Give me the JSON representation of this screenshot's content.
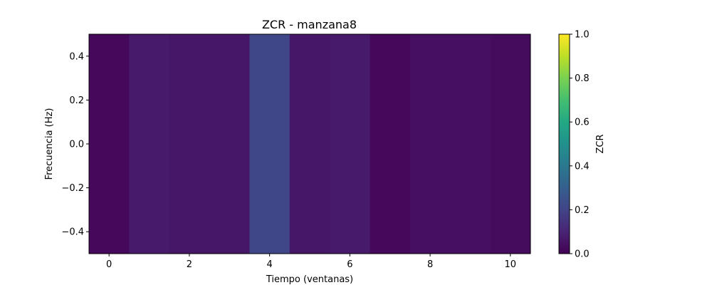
{
  "chart_data": {
    "type": "heatmap",
    "title": "ZCR - manzana8",
    "xlabel": "Tiempo (ventanas)",
    "ylabel": "Frecuencia (Hz)",
    "xlim": [
      -0.5,
      10.5
    ],
    "ylim": [
      -0.5,
      0.5
    ],
    "x_ticks": [
      0,
      2,
      4,
      6,
      8,
      10
    ],
    "x_tick_labels": [
      "0",
      "2",
      "4",
      "6",
      "8",
      "10"
    ],
    "y_ticks": [
      0.4,
      0.2,
      0.0,
      -0.2,
      -0.4
    ],
    "y_tick_labels": [
      "0.4",
      "0.2",
      "0.0",
      "−0.2",
      "−0.4"
    ],
    "x": [
      0,
      1,
      2,
      3,
      4,
      5,
      6,
      7,
      8,
      9,
      10
    ],
    "values": [
      0.02,
      0.07,
      0.06,
      0.06,
      0.21,
      0.06,
      0.07,
      0.02,
      0.04,
      0.04,
      0.03
    ],
    "colormap": "viridis",
    "colorbar": {
      "label": "ZCR",
      "range": [
        0.0,
        1.0
      ],
      "ticks": [
        0.0,
        0.2,
        0.4,
        0.6,
        0.8,
        1.0
      ],
      "tick_labels": [
        "0.0",
        "0.2",
        "0.4",
        "0.6",
        "0.8",
        "1.0"
      ]
    },
    "grid": false
  }
}
